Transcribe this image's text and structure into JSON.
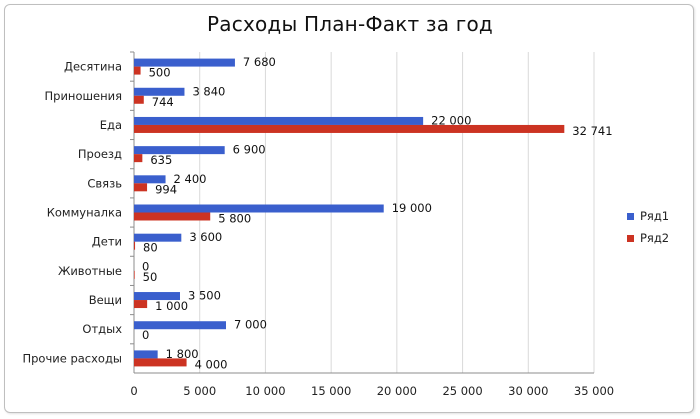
{
  "chart_data": {
    "type": "bar",
    "orientation": "horizontal",
    "title": "Расходы План-Факт за год",
    "categories": [
      "Десятина",
      "Приношения",
      "Еда",
      "Проезд",
      "Связь",
      "Коммуналка",
      "Дети",
      "Животные",
      "Вещи",
      "Отдых",
      "Прочие расходы"
    ],
    "series": [
      {
        "name": "Ряд1",
        "color": "#3a5fcd",
        "values": [
          7680,
          3840,
          22000,
          6900,
          2400,
          19000,
          3600,
          0,
          3500,
          7000,
          1800
        ],
        "labels": [
          "7 680",
          "3 840",
          "22 000",
          "6 900",
          "2 400",
          "19 000",
          "3 600",
          "0",
          "3 500",
          "7 000",
          "1 800"
        ]
      },
      {
        "name": "Ряд2",
        "color": "#cc3322",
        "values": [
          500,
          744,
          32741,
          635,
          994,
          5800,
          80,
          50,
          1000,
          0,
          4000
        ],
        "labels": [
          "500",
          "744",
          "32 741",
          "635",
          "994",
          "5 800",
          "80",
          "50",
          "1 000",
          "0",
          "4 000"
        ]
      }
    ],
    "xlim": [
      0,
      35000
    ],
    "xticks": [
      0,
      5000,
      10000,
      15000,
      20000,
      25000,
      30000,
      35000
    ],
    "xtick_labels": [
      "0",
      "5 000",
      "10 000",
      "15 000",
      "20 000",
      "25 000",
      "30 000",
      "35 000"
    ],
    "grid": true,
    "legend_position": "right"
  }
}
